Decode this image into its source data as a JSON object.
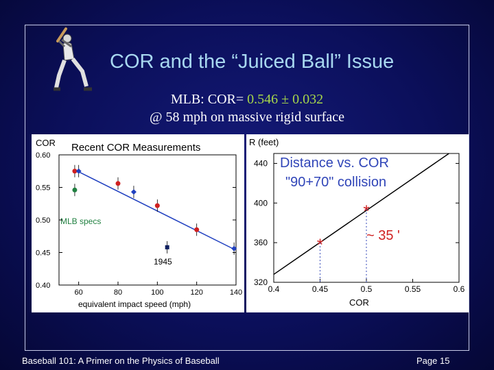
{
  "slide": {
    "title": "COR and the “Juiced Ball” Issue",
    "subtitle_prefix": "MLB:  COR= ",
    "subtitle_value": "0.546 ± 0.032",
    "subtitle_line2": "@ 58 mph on massive rigid surface",
    "footer_left": "Baseball 101:  A Primer on the Physics of Baseball",
    "footer_right": "Page 15",
    "colors": {
      "background": "#0b0f5a",
      "title": "#a8d8f0",
      "accent_green": "#a6d64a"
    }
  },
  "chart_data": [
    {
      "type": "scatter",
      "title": "Recent COR Measurements",
      "ylabel": "COR",
      "xlabel": "equivalent impact speed (mph)",
      "xlim": [
        50,
        140
      ],
      "ylim": [
        0.4,
        0.6
      ],
      "x_ticks": [
        60,
        80,
        100,
        120,
        140
      ],
      "y_ticks": [
        "0.40",
        "0.45",
        "0.50",
        "0.55",
        "0.60"
      ],
      "series": [
        {
          "color": "#d02020",
          "marker": "circle",
          "points": [
            {
              "x": 58,
              "y": 0.575
            },
            {
              "x": 80,
              "y": 0.556
            },
            {
              "x": 100,
              "y": 0.522
            },
            {
              "x": 120,
              "y": 0.485
            }
          ]
        },
        {
          "color": "#2040c0",
          "marker": "diamond",
          "points": [
            {
              "x": 60,
              "y": 0.575
            },
            {
              "x": 88,
              "y": 0.543
            },
            {
              "x": 139,
              "y": 0.456
            }
          ]
        },
        {
          "color": "#208040",
          "marker": "circle",
          "points": [
            {
              "x": 58,
              "y": 0.546
            }
          ]
        },
        {
          "color": "#102060",
          "marker": "square",
          "points": [
            {
              "x": 105,
              "y": 0.458
            }
          ]
        }
      ],
      "fit_line": {
        "color": "#2040c0",
        "points": [
          {
            "x": 58,
            "y": 0.577
          },
          {
            "x": 139,
            "y": 0.455
          }
        ]
      },
      "annotations": [
        {
          "text": "MLB specs",
          "color": "#208040"
        },
        {
          "text": "1945",
          "color": "#000000"
        }
      ]
    },
    {
      "type": "line",
      "title": "Distance vs. COR",
      "subtitle": "\"90+70\" collision",
      "ylabel": "R (feet)",
      "xlabel": "COR",
      "xlim": [
        0.4,
        0.6
      ],
      "ylim": [
        320,
        450
      ],
      "x_ticks": [
        "0.4",
        "0.45",
        "0.5",
        "0.55",
        "0.6"
      ],
      "y_ticks": [
        "320",
        "360",
        "400",
        "440"
      ],
      "series": [
        {
          "color": "#000000",
          "points": [
            {
              "x": 0.4,
              "y": 328
            },
            {
              "x": 0.6,
              "y": 457
            }
          ]
        }
      ],
      "markers": [
        {
          "x": 0.45,
          "y": 360,
          "symbol": "*",
          "color": "#d02020"
        },
        {
          "x": 0.5,
          "y": 394,
          "symbol": "*",
          "color": "#d02020"
        }
      ],
      "annotation": "~ 35 '"
    }
  ]
}
